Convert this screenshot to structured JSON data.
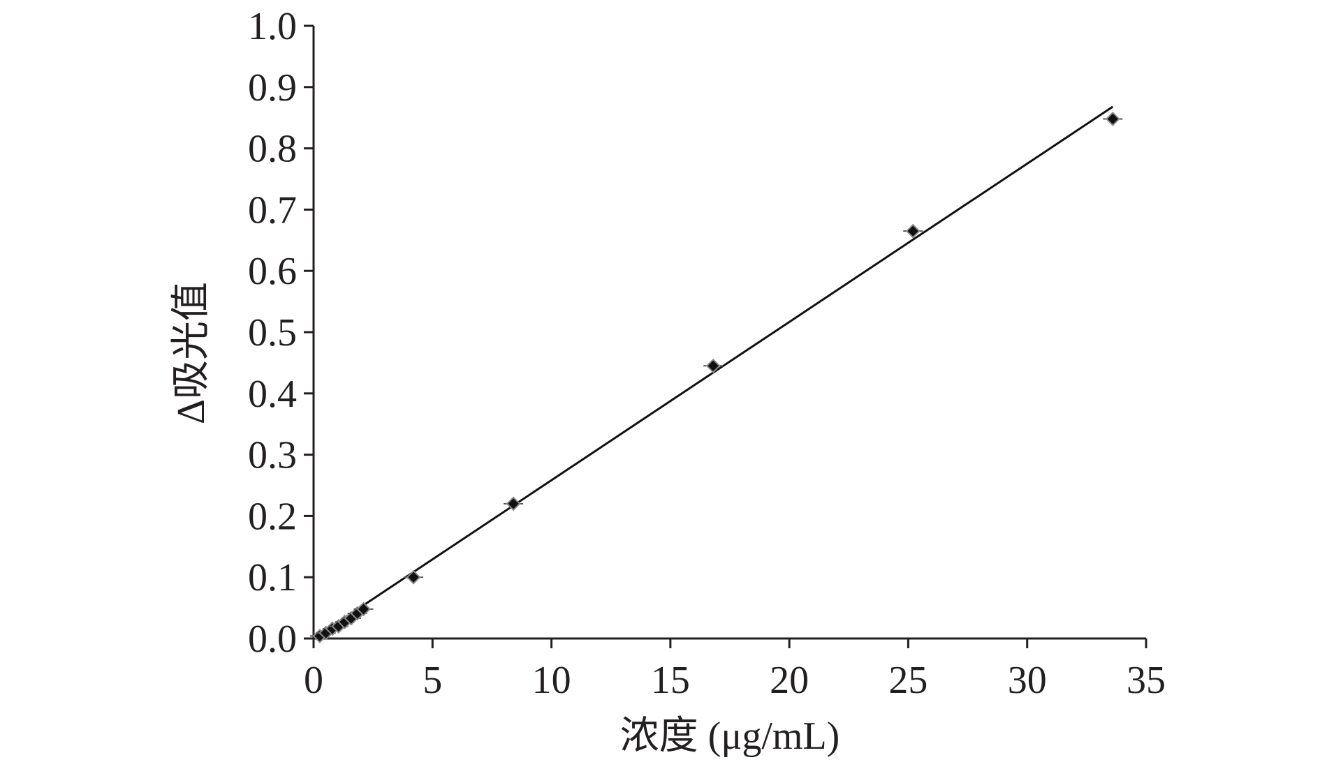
{
  "chart_data": {
    "type": "scatter",
    "xlabel": "浓度 (μg/mL)",
    "ylabel": "Δ吸光值",
    "xlim": [
      0,
      35
    ],
    "ylim": [
      0,
      1.0
    ],
    "x_ticks": [
      "0",
      "5",
      "10",
      "15",
      "20",
      "25",
      "30",
      "35"
    ],
    "y_ticks": [
      "0.0",
      "0.1",
      "0.2",
      "0.3",
      "0.4",
      "0.5",
      "0.6",
      "0.7",
      "0.8",
      "0.9",
      "1.0"
    ],
    "grid": false,
    "legend": "none",
    "series": [
      {
        "x": [
          0.26,
          0.52,
          0.79,
          1.05,
          1.31,
          1.58,
          1.84,
          2.1,
          4.2,
          8.4,
          16.8,
          25.2,
          33.6
        ],
        "y": [
          0.004,
          0.009,
          0.016,
          0.02,
          0.027,
          0.033,
          0.041,
          0.048,
          0.1,
          0.22,
          0.445,
          0.665,
          0.848
        ],
        "marker": "diamond",
        "color": "#111111"
      }
    ],
    "trendline": {
      "type": "linear",
      "x": [
        0,
        33.6
      ],
      "y": [
        0,
        0.868
      ]
    }
  }
}
